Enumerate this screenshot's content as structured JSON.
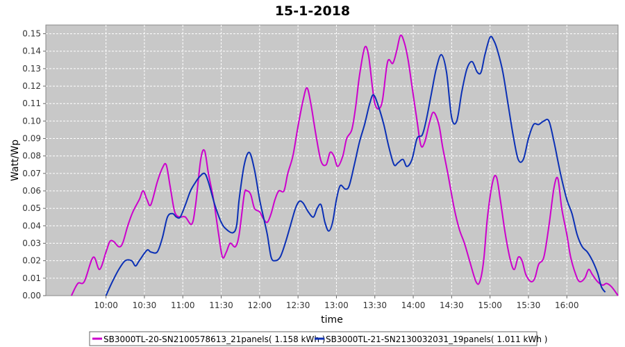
{
  "chart_data": {
    "type": "line",
    "title": "15-1-2018",
    "xlabel": "time",
    "ylabel": "Watt/Wp",
    "x_tick_labels": [
      "10:00",
      "10:30",
      "11:00",
      "11:30",
      "12:00",
      "12:30",
      "13:00",
      "13:30",
      "14:00",
      "14:30",
      "15:00",
      "15:30",
      "16:00"
    ],
    "x_range": [
      "09:13",
      "16:40"
    ],
    "ylim": [
      0,
      0.155
    ],
    "y_ticks": [
      "0.00",
      "0.01",
      "0.02",
      "0.03",
      "0.04",
      "0.05",
      "0.06",
      "0.07",
      "0.08",
      "0.09",
      "0.10",
      "0.11",
      "0.12",
      "0.13",
      "0.14",
      "0.15"
    ],
    "grid": true,
    "legend_position": "bottom",
    "series": [
      {
        "name": "SB3000TL-20-SN2100578613_21panels( 1.158 kWh )",
        "color": "#cc00cc",
        "points": [
          [
            "09:33",
            0.0
          ],
          [
            "09:38",
            0.007
          ],
          [
            "09:43",
            0.008
          ],
          [
            "09:50",
            0.022
          ],
          [
            "09:55",
            0.015
          ],
          [
            "10:00",
            0.025
          ],
          [
            "10:03",
            0.031
          ],
          [
            "10:06",
            0.031
          ],
          [
            "10:10",
            0.028
          ],
          [
            "10:13",
            0.03
          ],
          [
            "10:17",
            0.04
          ],
          [
            "10:21",
            0.048
          ],
          [
            "10:26",
            0.055
          ],
          [
            "10:29",
            0.06
          ],
          [
            "10:32",
            0.055
          ],
          [
            "10:35",
            0.052
          ],
          [
            "10:40",
            0.065
          ],
          [
            "10:44",
            0.073
          ],
          [
            "10:47",
            0.075
          ],
          [
            "10:50",
            0.063
          ],
          [
            "10:53",
            0.05
          ],
          [
            "10:55",
            0.046
          ],
          [
            "10:58",
            0.045
          ],
          [
            "11:02",
            0.045
          ],
          [
            "11:07",
            0.041
          ],
          [
            "11:10",
            0.052
          ],
          [
            "11:14",
            0.078
          ],
          [
            "11:17",
            0.083
          ],
          [
            "11:20",
            0.07
          ],
          [
            "11:24",
            0.055
          ],
          [
            "11:28",
            0.035
          ],
          [
            "11:31",
            0.022
          ],
          [
            "11:34",
            0.025
          ],
          [
            "11:37",
            0.03
          ],
          [
            "11:41",
            0.028
          ],
          [
            "11:44",
            0.035
          ],
          [
            "11:48",
            0.058
          ],
          [
            "11:50",
            0.06
          ],
          [
            "11:53",
            0.058
          ],
          [
            "11:56",
            0.05
          ],
          [
            "12:00",
            0.048
          ],
          [
            "12:03",
            0.044
          ],
          [
            "12:06",
            0.042
          ],
          [
            "12:09",
            0.047
          ],
          [
            "12:12",
            0.055
          ],
          [
            "12:15",
            0.06
          ],
          [
            "12:19",
            0.06
          ],
          [
            "12:22",
            0.07
          ],
          [
            "12:26",
            0.08
          ],
          [
            "12:30",
            0.097
          ],
          [
            "12:34",
            0.112
          ],
          [
            "12:37",
            0.119
          ],
          [
            "12:40",
            0.11
          ],
          [
            "12:44",
            0.092
          ],
          [
            "12:48",
            0.077
          ],
          [
            "12:52",
            0.075
          ],
          [
            "12:55",
            0.082
          ],
          [
            "12:58",
            0.08
          ],
          [
            "13:01",
            0.074
          ],
          [
            "13:05",
            0.08
          ],
          [
            "13:08",
            0.09
          ],
          [
            "13:12",
            0.095
          ],
          [
            "13:15",
            0.108
          ],
          [
            "13:18",
            0.126
          ],
          [
            "13:22",
            0.142
          ],
          [
            "13:25",
            0.138
          ],
          [
            "13:28",
            0.12
          ],
          [
            "13:30",
            0.11
          ],
          [
            "13:33",
            0.107
          ],
          [
            "13:36",
            0.112
          ],
          [
            "13:40",
            0.134
          ],
          [
            "13:44",
            0.133
          ],
          [
            "13:47",
            0.14
          ],
          [
            "13:50",
            0.149
          ],
          [
            "13:53",
            0.145
          ],
          [
            "13:56",
            0.135
          ],
          [
            "13:59",
            0.12
          ],
          [
            "14:03",
            0.1
          ],
          [
            "14:06",
            0.086
          ],
          [
            "14:09",
            0.088
          ],
          [
            "14:13",
            0.1
          ],
          [
            "14:16",
            0.105
          ],
          [
            "14:20",
            0.098
          ],
          [
            "14:23",
            0.085
          ],
          [
            "14:27",
            0.07
          ],
          [
            "14:32",
            0.05
          ],
          [
            "14:36",
            0.038
          ],
          [
            "14:40",
            0.03
          ],
          [
            "14:44",
            0.02
          ],
          [
            "14:49",
            0.008
          ],
          [
            "14:52",
            0.008
          ],
          [
            "14:55",
            0.02
          ],
          [
            "14:58",
            0.045
          ],
          [
            "15:02",
            0.065
          ],
          [
            "15:05",
            0.068
          ],
          [
            "15:08",
            0.055
          ],
          [
            "15:12",
            0.035
          ],
          [
            "15:16",
            0.02
          ],
          [
            "15:19",
            0.015
          ],
          [
            "15:22",
            0.022
          ],
          [
            "15:25",
            0.02
          ],
          [
            "15:28",
            0.012
          ],
          [
            "15:32",
            0.008
          ],
          [
            "15:35",
            0.01
          ],
          [
            "15:38",
            0.018
          ],
          [
            "15:42",
            0.022
          ],
          [
            "15:46",
            0.04
          ],
          [
            "15:50",
            0.062
          ],
          [
            "15:53",
            0.067
          ],
          [
            "15:56",
            0.05
          ],
          [
            "16:00",
            0.035
          ],
          [
            "16:03",
            0.022
          ],
          [
            "16:07",
            0.012
          ],
          [
            "16:10",
            0.008
          ],
          [
            "16:14",
            0.01
          ],
          [
            "16:17",
            0.015
          ],
          [
            "16:20",
            0.012
          ],
          [
            "16:24",
            0.008
          ],
          [
            "16:28",
            0.006
          ],
          [
            "16:31",
            0.007
          ],
          [
            "16:35",
            0.005
          ],
          [
            "16:40",
            0.0
          ]
        ]
      },
      {
        "name": "SB3000TL-21-SN2130032031_19panels( 1.011 kWh )",
        "color": "#0a2fb5",
        "points": [
          [
            "10:00",
            0.0
          ],
          [
            "10:05",
            0.008
          ],
          [
            "10:10",
            0.015
          ],
          [
            "10:15",
            0.02
          ],
          [
            "10:20",
            0.02
          ],
          [
            "10:23",
            0.017
          ],
          [
            "10:26",
            0.02
          ],
          [
            "10:32",
            0.026
          ],
          [
            "10:35",
            0.025
          ],
          [
            "10:40",
            0.025
          ],
          [
            "10:44",
            0.033
          ],
          [
            "10:48",
            0.045
          ],
          [
            "10:52",
            0.047
          ],
          [
            "10:55",
            0.045
          ],
          [
            "10:58",
            0.045
          ],
          [
            "11:02",
            0.052
          ],
          [
            "11:06",
            0.06
          ],
          [
            "11:10",
            0.065
          ],
          [
            "11:13",
            0.068
          ],
          [
            "11:17",
            0.07
          ],
          [
            "11:20",
            0.065
          ],
          [
            "11:25",
            0.052
          ],
          [
            "11:30",
            0.042
          ],
          [
            "11:34",
            0.038
          ],
          [
            "11:39",
            0.036
          ],
          [
            "11:42",
            0.04
          ],
          [
            "11:44",
            0.055
          ],
          [
            "11:48",
            0.075
          ],
          [
            "11:52",
            0.082
          ],
          [
            "11:56",
            0.072
          ],
          [
            "12:00",
            0.055
          ],
          [
            "12:03",
            0.045
          ],
          [
            "12:06",
            0.035
          ],
          [
            "12:09",
            0.022
          ],
          [
            "12:12",
            0.02
          ],
          [
            "12:16",
            0.022
          ],
          [
            "12:20",
            0.03
          ],
          [
            "12:24",
            0.04
          ],
          [
            "12:28",
            0.05
          ],
          [
            "12:31",
            0.054
          ],
          [
            "12:34",
            0.053
          ],
          [
            "12:38",
            0.048
          ],
          [
            "12:42",
            0.045
          ],
          [
            "12:45",
            0.05
          ],
          [
            "12:48",
            0.052
          ],
          [
            "12:51",
            0.042
          ],
          [
            "12:54",
            0.037
          ],
          [
            "12:57",
            0.042
          ],
          [
            "13:00",
            0.055
          ],
          [
            "13:03",
            0.063
          ],
          [
            "13:07",
            0.061
          ],
          [
            "13:10",
            0.063
          ],
          [
            "13:14",
            0.075
          ],
          [
            "13:18",
            0.088
          ],
          [
            "13:22",
            0.098
          ],
          [
            "13:26",
            0.11
          ],
          [
            "13:29",
            0.115
          ],
          [
            "13:33",
            0.108
          ],
          [
            "13:37",
            0.098
          ],
          [
            "13:41",
            0.085
          ],
          [
            "13:45",
            0.075
          ],
          [
            "13:48",
            0.076
          ],
          [
            "13:52",
            0.078
          ],
          [
            "13:55",
            0.074
          ],
          [
            "13:59",
            0.078
          ],
          [
            "14:03",
            0.09
          ],
          [
            "14:07",
            0.092
          ],
          [
            "14:10",
            0.1
          ],
          [
            "14:14",
            0.115
          ],
          [
            "14:18",
            0.13
          ],
          [
            "14:22",
            0.138
          ],
          [
            "14:26",
            0.128
          ],
          [
            "14:30",
            0.102
          ],
          [
            "14:34",
            0.1
          ],
          [
            "14:38",
            0.117
          ],
          [
            "14:42",
            0.13
          ],
          [
            "14:46",
            0.134
          ],
          [
            "14:50",
            0.128
          ],
          [
            "14:53",
            0.128
          ],
          [
            "14:56",
            0.138
          ],
          [
            "15:00",
            0.148
          ],
          [
            "15:03",
            0.146
          ],
          [
            "15:06",
            0.14
          ],
          [
            "15:10",
            0.128
          ],
          [
            "15:14",
            0.11
          ],
          [
            "15:18",
            0.092
          ],
          [
            "15:22",
            0.078
          ],
          [
            "15:26",
            0.078
          ],
          [
            "15:30",
            0.09
          ],
          [
            "15:34",
            0.098
          ],
          [
            "15:38",
            0.098
          ],
          [
            "15:42",
            0.1
          ],
          [
            "15:46",
            0.1
          ],
          [
            "15:50",
            0.088
          ],
          [
            "15:55",
            0.07
          ],
          [
            "16:00",
            0.055
          ],
          [
            "16:04",
            0.047
          ],
          [
            "16:08",
            0.035
          ],
          [
            "16:12",
            0.028
          ],
          [
            "16:16",
            0.025
          ],
          [
            "16:20",
            0.02
          ],
          [
            "16:24",
            0.013
          ],
          [
            "16:27",
            0.005
          ],
          [
            "16:30",
            0.002
          ]
        ]
      }
    ]
  }
}
